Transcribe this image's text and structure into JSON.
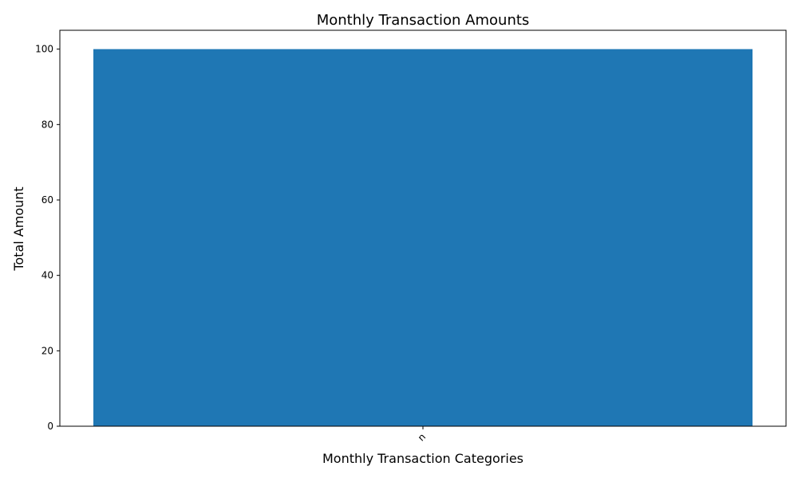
{
  "chart_data": {
    "type": "bar",
    "title": "Monthly Transaction Amounts",
    "xlabel": "Monthly Transaction Categories",
    "ylabel": "Total Amount",
    "categories": [
      "n"
    ],
    "values": [
      100
    ],
    "ylim": [
      0,
      105
    ],
    "yticks": [
      0,
      20,
      40,
      60,
      80,
      100
    ],
    "bar_color": "#1f77b4",
    "grid": false,
    "legend": "none"
  }
}
